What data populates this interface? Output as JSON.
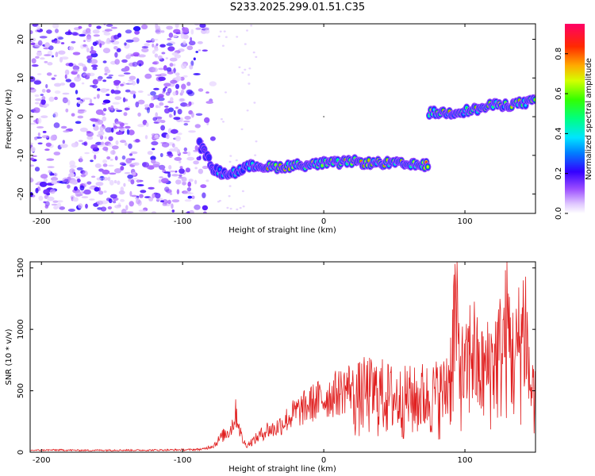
{
  "title": "S233.2025.299.01.51.C35",
  "chart_data": [
    {
      "type": "heatmap",
      "xlabel": "Height of straight line (km)",
      "ylabel": "Frequency (Hz)",
      "xlim": [
        -208,
        150
      ],
      "ylim": [
        -25,
        24
      ],
      "xticks": [
        -200,
        -100,
        0,
        100
      ],
      "yticks": [
        -20,
        -10,
        0,
        10,
        20
      ],
      "colorbar": {
        "label": "Normalized spectral amplitude",
        "range": [
          0.0,
          0.95
        ],
        "ticks": [
          0.0,
          0.2,
          0.4,
          0.6,
          0.8
        ],
        "tick_labels": [
          "0.0",
          "0.2",
          "0.4",
          "0.6",
          "0.8"
        ]
      },
      "ridge": [
        {
          "x": -85,
          "freq": -9.0
        },
        {
          "x": -78,
          "freq": -13.5
        },
        {
          "x": -70,
          "freq": -15.0
        },
        {
          "x": -60,
          "freq": -14.0
        },
        {
          "x": -50,
          "freq": -12.5
        },
        {
          "x": -40,
          "freq": -13.0
        },
        {
          "x": -30,
          "freq": -13.0
        },
        {
          "x": -20,
          "freq": -12.5
        },
        {
          "x": -10,
          "freq": -12.5
        },
        {
          "x": 0,
          "freq": -12.0
        },
        {
          "x": 10,
          "freq": -12.0
        },
        {
          "x": 20,
          "freq": -11.5
        },
        {
          "x": 30,
          "freq": -12.0
        },
        {
          "x": 40,
          "freq": -12.0
        },
        {
          "x": 50,
          "freq": -12.0
        },
        {
          "x": 60,
          "freq": -12.5
        },
        {
          "x": 74,
          "freq": -12.5
        },
        {
          "x": 75,
          "freq": 1.0
        },
        {
          "x": 90,
          "freq": 1.0
        },
        {
          "x": 100,
          "freq": 1.5
        },
        {
          "x": 110,
          "freq": 2.0
        },
        {
          "x": 120,
          "freq": 3.0
        },
        {
          "x": 130,
          "freq": 3.0
        },
        {
          "x": 140,
          "freq": 3.5
        },
        {
          "x": 150,
          "freq": 4.0
        }
      ]
    },
    {
      "type": "line",
      "xlabel": "Height of straight line (km)",
      "ylabel": "SNR (10 * v/v)",
      "xlim": [
        -208,
        150
      ],
      "ylim": [
        0,
        1550
      ],
      "xticks": [
        -200,
        -100,
        0,
        100
      ],
      "yticks": [
        0,
        500,
        1000,
        1500
      ],
      "series": [
        {
          "color": "#e02020",
          "x": [
            -208,
            -190,
            -170,
            -150,
            -130,
            -110,
            -95,
            -85,
            -78,
            -72,
            -66,
            -62,
            -58,
            -55,
            -50,
            -45,
            -40,
            -35,
            -30,
            -25,
            -20,
            -15,
            -10,
            -5,
            0,
            5,
            10,
            15,
            20,
            25,
            30,
            35,
            40,
            45,
            50,
            55,
            60,
            65,
            70,
            75,
            80,
            85,
            90,
            93,
            96,
            100,
            105,
            110,
            115,
            120,
            125,
            130,
            135,
            140,
            143,
            146,
            150
          ],
          "values": [
            15,
            18,
            15,
            17,
            16,
            18,
            20,
            25,
            60,
            140,
            200,
            350,
            120,
            60,
            100,
            150,
            200,
            200,
            250,
            300,
            350,
            380,
            420,
            450,
            470,
            500,
            520,
            560,
            590,
            620,
            660,
            640,
            650,
            620,
            600,
            580,
            600,
            580,
            620,
            600,
            640,
            650,
            900,
            1550,
            1000,
            800,
            1200,
            850,
            900,
            1000,
            1100,
            1350,
            950,
            1300,
            1450,
            700,
            650
          ]
        }
      ]
    }
  ]
}
